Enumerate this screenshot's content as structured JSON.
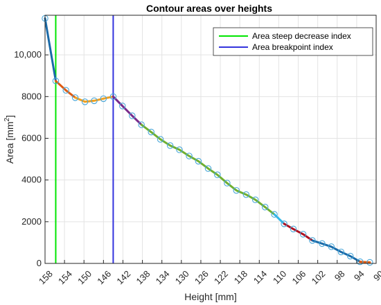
{
  "chart_data": {
    "type": "line",
    "title": "Contour areas over heights",
    "xlabel": "Height [mm]",
    "ylabel_main": "Area [mm",
    "ylabel_sup": "2",
    "ylabel_close": "]",
    "xlim": [
      158,
      90
    ],
    "x_reversed": true,
    "ylim": [
      0,
      11900
    ],
    "xticks": [
      158,
      154,
      150,
      146,
      142,
      138,
      134,
      130,
      126,
      122,
      118,
      114,
      110,
      106,
      102,
      98,
      94,
      90
    ],
    "yticks": [
      0,
      2000,
      4000,
      6000,
      8000,
      10000
    ],
    "ytick_labels": [
      "0",
      "2000",
      "4000",
      "6000",
      "8000",
      "10,000"
    ],
    "grid": true,
    "legend_position": "top-right",
    "legend": [
      {
        "label": "Area steep decrease index",
        "color": "#00e600"
      },
      {
        "label": "Area breakpoint index",
        "color": "#3333dd"
      }
    ],
    "vlines": [
      {
        "x": 155.8,
        "color": "#00e600"
      },
      {
        "x": 144.0,
        "color": "#3333dd"
      }
    ],
    "points": {
      "x": [
        158,
        155.8,
        153.7,
        151.8,
        149.8,
        147.9,
        146.0,
        144.0,
        142.1,
        140.1,
        138.2,
        136.2,
        134.3,
        132.3,
        130.4,
        128.4,
        126.5,
        124.5,
        122.6,
        120.6,
        118.7,
        116.7,
        114.8,
        112.8,
        110.9,
        108.9,
        107.0,
        105.0,
        103.1,
        101.1,
        99.2,
        97.2,
        95.3,
        93.3,
        91.3
      ],
      "y": [
        11750,
        8750,
        8300,
        7950,
        7750,
        7800,
        7900,
        8000,
        7550,
        7080,
        6650,
        6300,
        5950,
        5650,
        5450,
        5150,
        4900,
        4550,
        4250,
        3850,
        3500,
        3300,
        3050,
        2700,
        2350,
        1900,
        1650,
        1400,
        1100,
        950,
        800,
        550,
        350,
        80,
        50
      ],
      "color": "#4aa7d9"
    },
    "segments": [
      {
        "from": 0,
        "to": 1,
        "color": "#1a6aa8"
      },
      {
        "from": 1,
        "to": 3,
        "color": "#e05a10"
      },
      {
        "from": 3,
        "to": 7,
        "color": "#f0a020"
      },
      {
        "from": 7,
        "to": 10,
        "color": "#7a2a8a"
      },
      {
        "from": 10,
        "to": 24,
        "color": "#70b030"
      },
      {
        "from": 24,
        "to": 25,
        "color": "#30b8e8"
      },
      {
        "from": 25,
        "to": 28,
        "color": "#b01020"
      },
      {
        "from": 28,
        "to": 33,
        "color": "#1a6aa8"
      },
      {
        "from": 33,
        "to": 34,
        "color": "#e05a10"
      }
    ]
  }
}
